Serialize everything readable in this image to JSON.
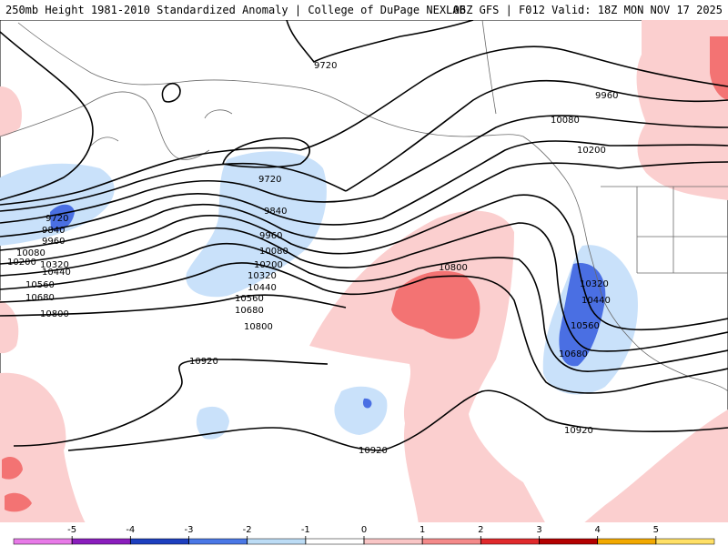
{
  "header": {
    "left": "250mb Height 1981-2010 Standardized Anomaly | College of DuPage NEXLAB",
    "right": "06Z GFS | F012 Valid: 18Z MON NOV 17 2025"
  },
  "contour_labels": [
    "9720",
    "9960",
    "10080",
    "10200",
    "9720",
    "9840",
    "9960",
    "10080",
    "10200",
    "10320",
    "10440",
    "10560",
    "10680",
    "10800",
    "10800",
    "9720",
    "9840",
    "9960",
    "10080",
    "10200",
    "10320",
    "10440",
    "10560",
    "10680",
    "10800",
    "10920",
    "10920",
    "10320",
    "10440",
    "10560",
    "10680",
    "10920"
  ],
  "colorbar": {
    "ticks": [
      "-5",
      "-4",
      "-3",
      "-2",
      "-1",
      "0",
      "1",
      "2",
      "3",
      "4",
      "5"
    ],
    "colors": [
      "#e87ae8",
      "#8a1dbd",
      "#1d3fbf",
      "#4a78e6",
      "#bcdcf5",
      "#ffffff",
      "#f9c6c6",
      "#f48a8a",
      "#e0292c",
      "#b30000",
      "#f2a900",
      "#ffe066"
    ]
  },
  "colors": {
    "anomaly_neg_1": "#c9e1fa",
    "anomaly_neg_2": "#4a6fe3",
    "anomaly_pos_1": "#fbcfcf",
    "anomaly_pos_2": "#f37373",
    "contour": "#000000",
    "coastline": "#6a6a6a"
  }
}
